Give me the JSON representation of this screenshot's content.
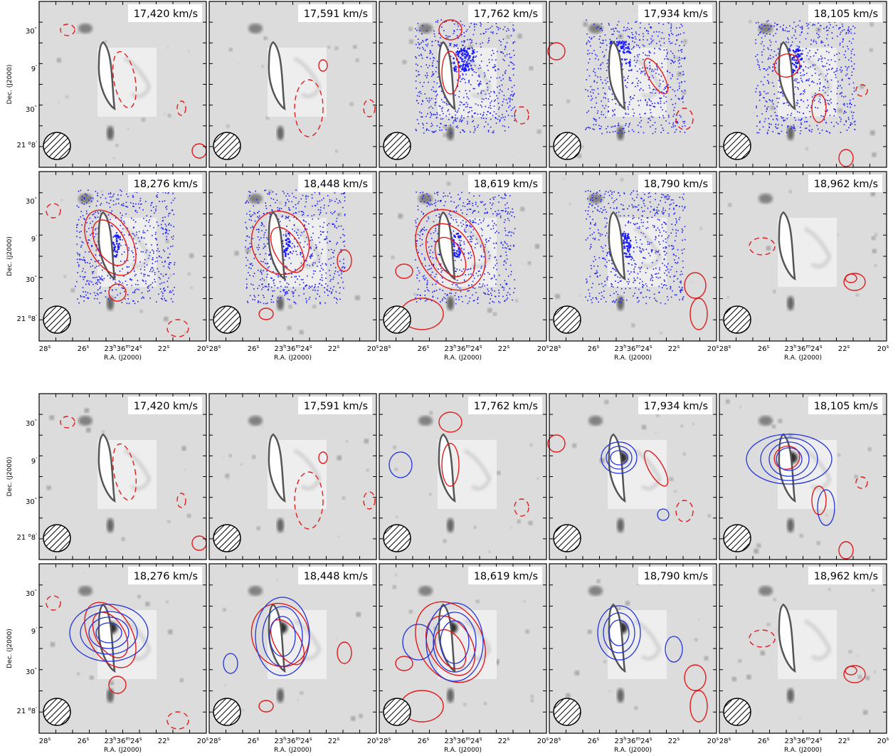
{
  "figure": {
    "upper_block": {
      "rows": [
        [
          "17,420 km/s",
          "17,591 km/s",
          "17,762 km/s",
          "17,934 km/s",
          "18,105 km/s"
        ],
        [
          "18,276 km/s",
          "18,448 km/s",
          "18,619 km/s",
          "18,790 km/s",
          "18,962 km/s"
        ]
      ]
    },
    "lower_block": {
      "rows": [
        [
          "17,420 km/s",
          "17,591 km/s",
          "17,762 km/s",
          "17,934 km/s",
          "18,105 km/s"
        ],
        [
          "18,276 km/s",
          "18,448 km/s",
          "18,619 km/s",
          "18,790 km/s",
          "18,962 km/s"
        ]
      ]
    },
    "axes": {
      "ylabel": "Dec. (J2000)",
      "xlabel": "R.A. (J2000)",
      "yticks": [
        {
          "pre": "",
          "deg": "",
          "min": "",
          "sec": "30",
          "tail": "\""
        },
        {
          "pre": "",
          "deg": "",
          "min": "9",
          "sec": "",
          "tail": "'"
        },
        {
          "pre": "",
          "deg": "",
          "min": "",
          "sec": "30",
          "tail": "\""
        },
        {
          "pre": "21",
          "deg": "o",
          "min": "8",
          "sec": "",
          "tail": "'"
        }
      ],
      "xticks": [
        {
          "pre": "",
          "h": "",
          "m": "",
          "s": "28",
          "sup": "s"
        },
        {
          "pre": "",
          "h": "",
          "m": "",
          "s": "26",
          "sup": "s"
        },
        {
          "pre": "23",
          "h": "h",
          "m": "36",
          "s": "24",
          "sup": "s"
        },
        {
          "pre": "",
          "h": "",
          "m": "",
          "s": "22",
          "sup": "s"
        },
        {
          "pre": "",
          "h": "",
          "m": "",
          "s": "20",
          "sup": "s"
        }
      ]
    },
    "colors": {
      "background": "#dcdcdc",
      "inset": "#eeeeee",
      "positive_contour": "#e31a1c",
      "negative_contour": "#e31a1c",
      "blue_emission": "#1a1aff",
      "blue_contour": "#2233dd",
      "galaxy_outline": "#555555"
    },
    "beam_icon": "hatched-circle"
  }
}
